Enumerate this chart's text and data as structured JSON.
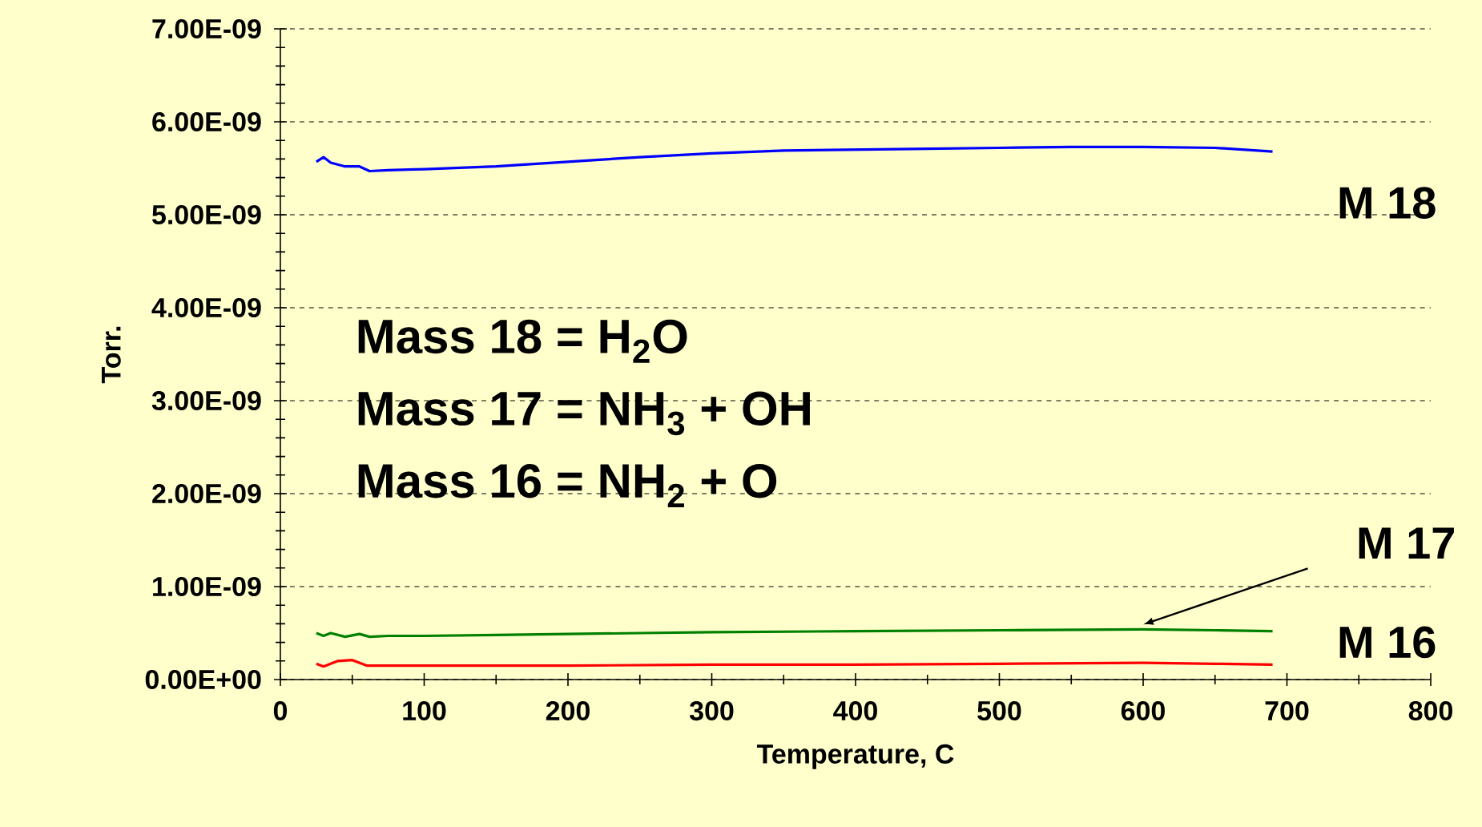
{
  "chart_data": {
    "type": "line",
    "xlabel": "Temperature, C",
    "ylabel": "Torr.",
    "xlim": [
      0,
      800
    ],
    "xticks": [
      0,
      100,
      200,
      300,
      400,
      500,
      600,
      700,
      800
    ],
    "ylim": [
      0,
      7e-09
    ],
    "yticks": [
      {
        "value": 0,
        "label": "0.00E+00"
      },
      {
        "value": 1e-09,
        "label": "1.00E-09"
      },
      {
        "value": 2e-09,
        "label": "2.00E-09"
      },
      {
        "value": 3e-09,
        "label": "3.00E-09"
      },
      {
        "value": 4e-09,
        "label": "4.00E-09"
      },
      {
        "value": 5e-09,
        "label": "5.00E-09"
      },
      {
        "value": 6e-09,
        "label": "6.00E-09"
      },
      {
        "value": 7e-09,
        "label": "7.00E-09"
      }
    ],
    "grid": "y",
    "line_style": "solid",
    "marker": "none",
    "annotations": [
      "Mass 18 = H$_{2}$O",
      "Mass 17 = NH$_{3}$ + OH",
      "Mass 16 = NH$_{2}$ + O"
    ],
    "series": [
      {
        "name": "M 18",
        "color": "#0000ff",
        "x": [
          25,
          30,
          35,
          45,
          55,
          62,
          75,
          100,
          150,
          200,
          250,
          300,
          350,
          400,
          450,
          500,
          550,
          600,
          650,
          690
        ],
        "values": [
          5.57e-09,
          5.62e-09,
          5.56e-09,
          5.52e-09,
          5.52e-09,
          5.47e-09,
          5.48e-09,
          5.49e-09,
          5.52e-09,
          5.57e-09,
          5.62e-09,
          5.66e-09,
          5.69e-09,
          5.7e-09,
          5.71e-09,
          5.72e-09,
          5.73e-09,
          5.73e-09,
          5.72e-09,
          5.68e-09
        ]
      },
      {
        "name": "M 17",
        "color": "#008000",
        "x": [
          25,
          30,
          35,
          45,
          55,
          62,
          75,
          100,
          150,
          200,
          250,
          300,
          400,
          500,
          600,
          650,
          690
        ],
        "values": [
          5e-10,
          4.7e-10,
          5e-10,
          4.6e-10,
          4.9e-10,
          4.6e-10,
          4.7e-10,
          4.7e-10,
          4.8e-10,
          4.9e-10,
          5e-10,
          5.1e-10,
          5.2e-10,
          5.3e-10,
          5.4e-10,
          5.3e-10,
          5.2e-10
        ]
      },
      {
        "name": "M 16",
        "color": "#ff0000",
        "x": [
          25,
          30,
          40,
          50,
          60,
          75,
          100,
          200,
          300,
          400,
          500,
          600,
          650,
          690
        ],
        "values": [
          1.7e-10,
          1.4e-10,
          2e-10,
          2.1e-10,
          1.5e-10,
          1.5e-10,
          1.5e-10,
          1.5e-10,
          1.6e-10,
          1.6e-10,
          1.7e-10,
          1.8e-10,
          1.7e-10,
          1.6e-10
        ]
      }
    ]
  }
}
